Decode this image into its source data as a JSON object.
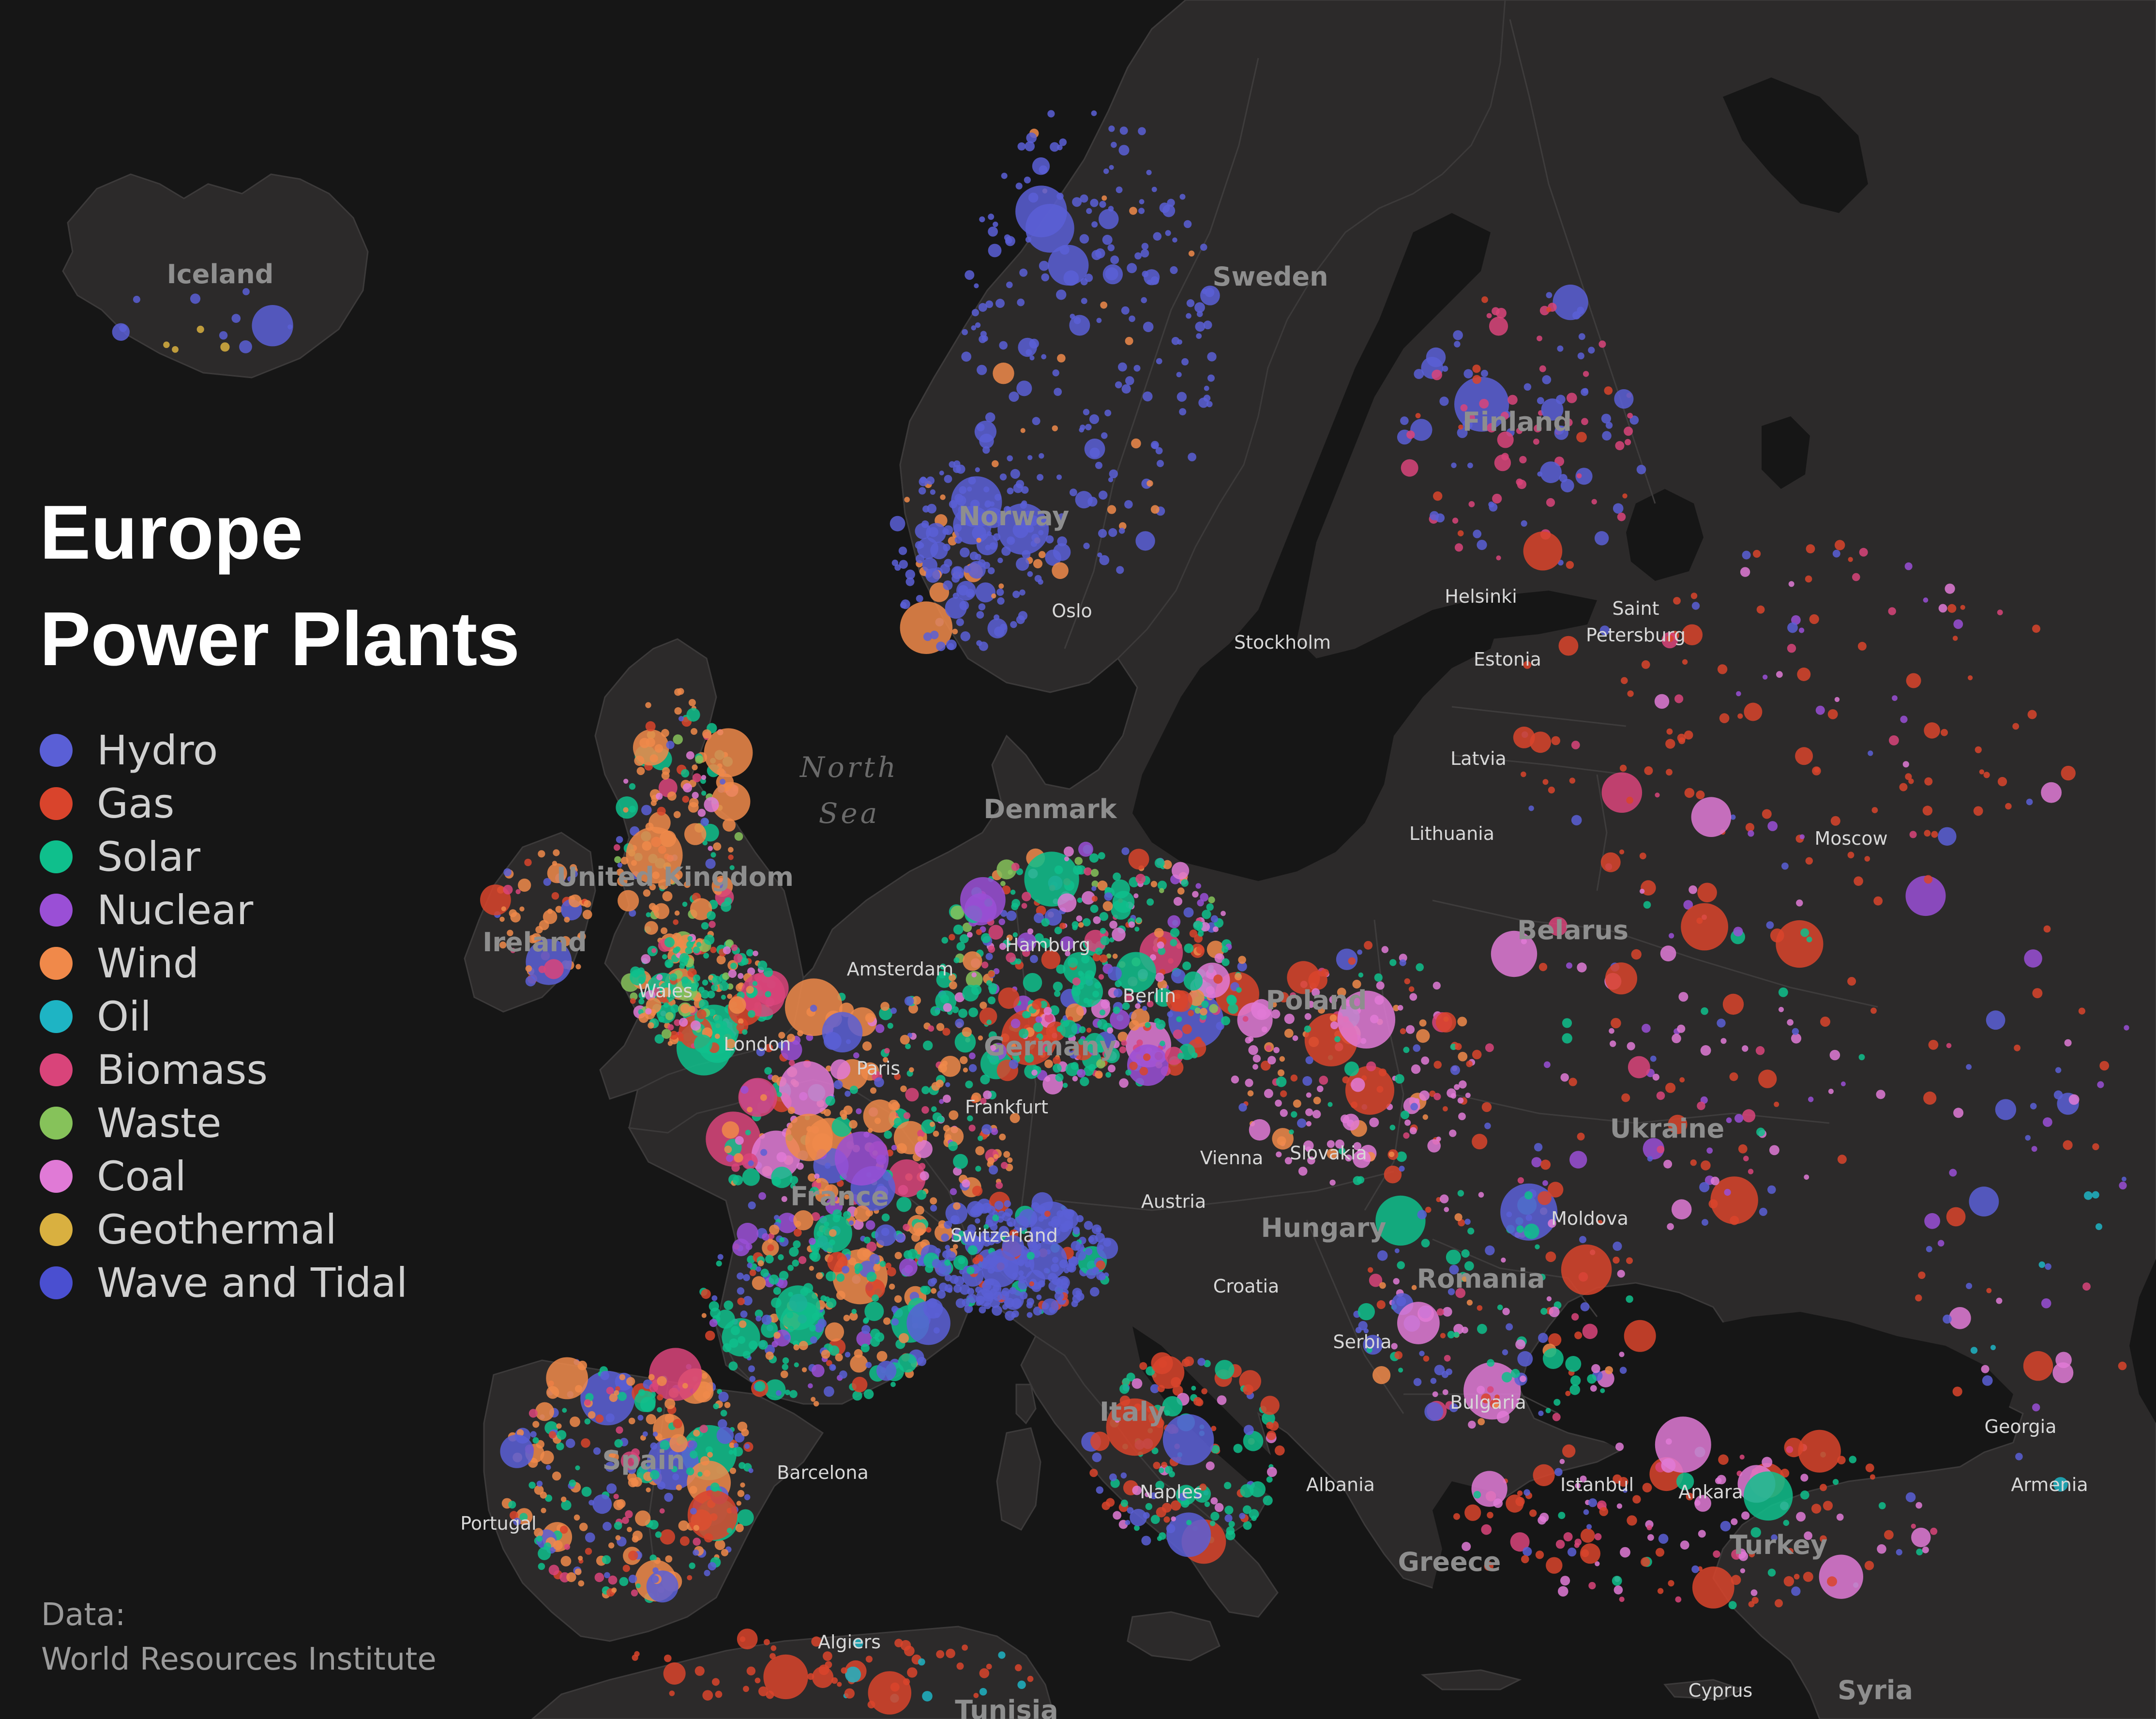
{
  "title": {
    "line1": "Europe",
    "line2": "Power Plants"
  },
  "legend": {
    "items": [
      {
        "label": "Hydro",
        "color": "#5a5fd6"
      },
      {
        "label": "Gas",
        "color": "#d9442c"
      },
      {
        "label": "Solar",
        "color": "#0fbf8c"
      },
      {
        "label": "Nuclear",
        "color": "#9a4fd6"
      },
      {
        "label": "Wind",
        "color": "#f0894a"
      },
      {
        "label": "Oil",
        "color": "#1eb4c4"
      },
      {
        "label": "Biomass",
        "color": "#d9447a"
      },
      {
        "label": "Waste",
        "color": "#86c25a"
      },
      {
        "label": "Coal",
        "color": "#e07ad6"
      },
      {
        "label": "Geothermal",
        "color": "#d9b040"
      },
      {
        "label": "Wave and Tidal",
        "color": "#4a4fd0"
      }
    ]
  },
  "source": {
    "line1": "Data:",
    "line2": "World Resources Institute"
  },
  "map": {
    "country_labels": [
      "Iceland",
      "Sweden",
      "Finland",
      "Norway",
      "Denmark",
      "United Kingdom",
      "Ireland",
      "Poland",
      "Belarus",
      "Ukraine",
      "Germany",
      "France",
      "Spain",
      "Italy",
      "Hungary",
      "Romania",
      "Bulgaria",
      "Greece",
      "Turkey",
      "Syria",
      "Estonia",
      "Latvia",
      "Lithuania",
      "Slovakia",
      "Austria",
      "Switzerland",
      "Croatia",
      "Serbia",
      "Albania",
      "Moldova",
      "Georgia",
      "Armenia",
      "Cyprus",
      "Wales",
      "Portugal",
      "Tunisia"
    ],
    "city_labels": [
      "Oslo",
      "Stockholm",
      "Helsinki",
      "Saint",
      "Petersburg",
      "Moscow",
      "Amsterdam",
      "Hamburg",
      "Berlin",
      "London",
      "Paris",
      "Frankfurt",
      "Vienna",
      "Barcelona",
      "Naples",
      "Istanbul",
      "Ankara",
      "Algiers"
    ],
    "sea_labels": [
      "North",
      "Sea"
    ]
  }
}
